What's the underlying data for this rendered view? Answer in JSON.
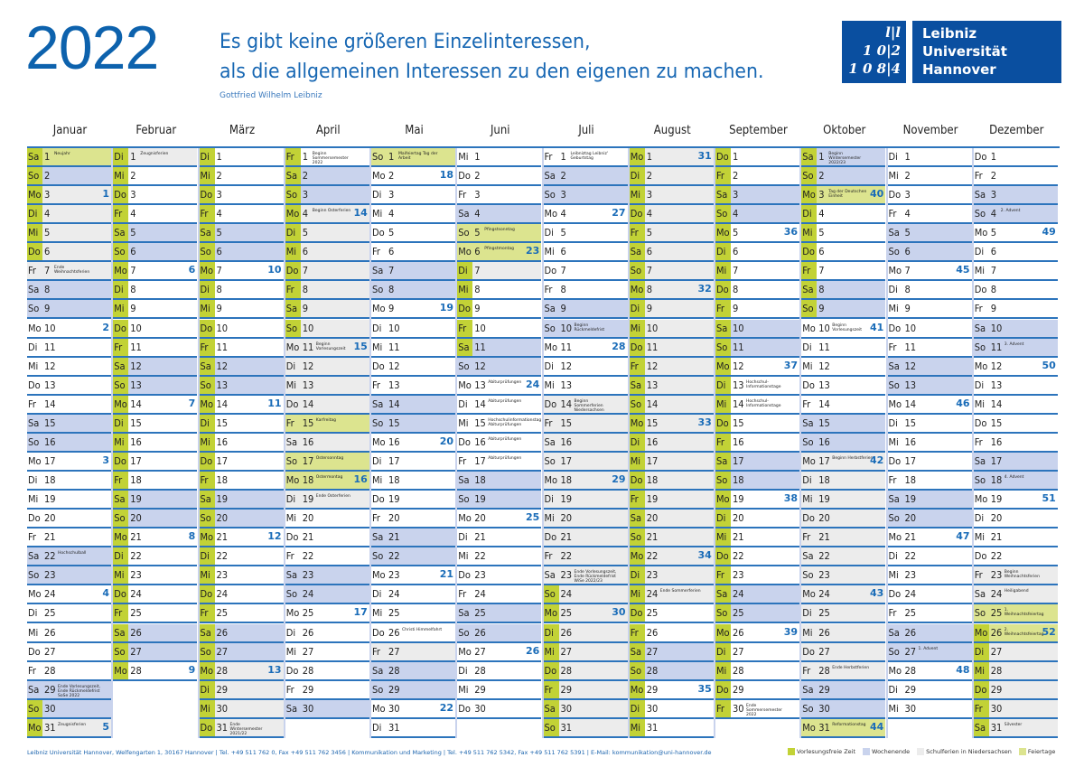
{
  "header": {
    "year": "2022",
    "quote_line1": "Es gibt keine größeren Einzelinteressen,",
    "quote_line2": "als die allgemeinen Interessen zu den eigenen zu machen.",
    "author": "Gottfried Wilhelm Leibniz"
  },
  "logo": {
    "mark_lines": [
      "l|l",
      "1 0|2",
      "1 0 8|4"
    ],
    "name_lines": [
      "Leibniz",
      "Universität",
      "Hannover"
    ]
  },
  "colors": {
    "brand_blue": "#0a4fa0",
    "lecture_free": "#c2d236",
    "weekend": "#c9d3ed",
    "school_holidays": "#ececec",
    "public_holiday": "#dce48f"
  },
  "weekday_names": [
    "Mo",
    "Di",
    "Mi",
    "Do",
    "Fr",
    "Sa",
    "So"
  ],
  "months": [
    {
      "name": "Januar",
      "lecture_free": [
        [
          1,
          6
        ],
        [
          30,
          31
        ]
      ],
      "school_holidays": [
        [
          3,
          7
        ],
        [
          31,
          31
        ]
      ],
      "public_holidays": [
        1
      ],
      "notes": {
        "1": "Neujahr",
        "7": "Ende Weihnachtsferien",
        "22": "Hochschulball",
        "29": "Ende Vorlesungszeit, Ende Rückmeldefrist SoSe 2022",
        "31": "Zeugnisferien"
      }
    },
    {
      "name": "Februar",
      "lecture_free": [
        [
          1,
          28
        ]
      ],
      "school_holidays": [
        [
          1,
          1
        ]
      ],
      "public_holidays": [],
      "notes": {
        "1": "Zeugnisferien"
      }
    },
    {
      "name": "März",
      "lecture_free": [
        [
          1,
          31
        ]
      ],
      "school_holidays": [
        [
          28,
          31
        ]
      ],
      "public_holidays": [],
      "notes": {
        "31": "Ende Wintersemester 2021/22"
      }
    },
    {
      "name": "April",
      "lecture_free": [
        [
          1,
          10
        ]
      ],
      "school_holidays": [
        [
          4,
          19
        ]
      ],
      "public_holidays": [
        15,
        17,
        18
      ],
      "notes": {
        "1": "Beginn Sommersemester 2022",
        "4": "Beginn Osterferien",
        "11": "Beginn Vorlesungszeit",
        "15": "Karfreitag",
        "17": "Ostersonntag",
        "18": "Ostermontag",
        "19": "Ende Osterferien"
      }
    },
    {
      "name": "Mai",
      "lecture_free": [],
      "school_holidays": [
        [
          27,
          27
        ]
      ],
      "public_holidays": [
        1
      ],
      "notes": {
        "1": "Maifeiertag Tag der Arbeit",
        "26": "Christi Himmelfahrt"
      }
    },
    {
      "name": "Juni",
      "lecture_free": [
        [
          7,
          11
        ]
      ],
      "school_holidays": [
        [
          7,
          7
        ]
      ],
      "public_holidays": [
        5,
        6
      ],
      "notes": {
        "5": "Pfingstsonntag",
        "6": "Pfingstmontag",
        "13": "Abiturprüfungen",
        "14": "Abiturprüfungen",
        "15": "Hochschulinformationstag Abiturprüfungen",
        "16": "Abiturprüfungen",
        "17": "Abiturprüfungen"
      }
    },
    {
      "name": "Juli",
      "lecture_free": [
        [
          24,
          31
        ]
      ],
      "school_holidays": [
        [
          14,
          31
        ]
      ],
      "public_holidays": [],
      "notes": {
        "1": "Leibniztag Leibniz' Geburtstag",
        "10": "Beginn Rückmeldefrist",
        "14": "Beginn Sommerferien Niedersachsen",
        "23": "Ende Vorlesungszeit, Ende Rückmeldefrist WiSe 2022/23"
      }
    },
    {
      "name": "August",
      "lecture_free": [
        [
          1,
          31
        ]
      ],
      "school_holidays": [
        [
          1,
          24
        ]
      ],
      "public_holidays": [],
      "notes": {
        "24": "Ende Sommerferien"
      }
    },
    {
      "name": "September",
      "lecture_free": [
        [
          1,
          30
        ]
      ],
      "school_holidays": [],
      "public_holidays": [],
      "notes": {
        "13": "Hochschul-Informationstage",
        "14": "Hochschul-Informationstage",
        "30": "Ende Sommersemester 2022"
      }
    },
    {
      "name": "Oktober",
      "lecture_free": [
        [
          1,
          9
        ]
      ],
      "school_holidays": [
        [
          17,
          28
        ]
      ],
      "public_holidays": [
        3,
        31
      ],
      "notes": {
        "1": "Beginn Wintersemester 2022/23",
        "3": "Tag der Deutschen Einheit",
        "10": "Beginn Vorlesungszeit",
        "17": "Beginn Herbstferien",
        "28": "Ende Herbstferien",
        "31": "Reformationstag"
      }
    },
    {
      "name": "November",
      "lecture_free": [],
      "school_holidays": [],
      "public_holidays": [],
      "notes": {
        "27": "1. Advent"
      }
    },
    {
      "name": "Dezember",
      "lecture_free": [
        [
          26,
          31
        ]
      ],
      "school_holidays": [
        [
          23,
          31
        ]
      ],
      "public_holidays": [
        25,
        26
      ],
      "notes": {
        "4": "2. Advent",
        "11": "3. Advent",
        "18": "4. Advent",
        "23": "Beginn Weihnachtsferien",
        "24": "Heiligabend",
        "25": "1. Weihnachtsfeiertag",
        "26": "2. Weihnachtsfeiertag",
        "31": "Silvester"
      }
    }
  ],
  "footer": {
    "contact": "Leibniz Universität Hannover, Welfengarten 1, 30167 Hannover | Tel. +49 511 762 0, Fax +49 511 762 3456 | Kommunikation und Marketing | Tel. +49 511 762 5342, Fax +49 511 762 5391 | E-Mail: kommunikation@uni-hannover.de",
    "legend": [
      "Vorlesungsfreie Zeit",
      "Wochenende",
      "Schulferien in Niedersachsen",
      "Feiertage"
    ]
  }
}
